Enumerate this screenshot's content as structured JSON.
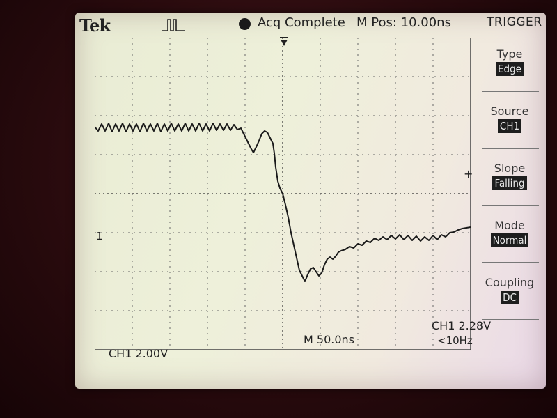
{
  "header": {
    "brand": "Tek",
    "status": "Acq Complete",
    "position": "M Pos: 10.00ns",
    "icons": [
      "trigger-pulse-icon",
      "acquisition-status-dot-icon",
      "trigger-position-arrow-icon"
    ]
  },
  "trigger_menu": {
    "title": "TRIGGER",
    "items": [
      {
        "label": "Type",
        "value": "Edge"
      },
      {
        "label": "Source",
        "value": "CH1"
      },
      {
        "label": "Slope",
        "value": "Falling"
      },
      {
        "label": "Mode",
        "value": "Normal"
      },
      {
        "label": "Coupling",
        "value": "DC"
      }
    ]
  },
  "readouts": {
    "channel_marker": "1",
    "channel_scale": "CH1  2.00V",
    "timebase": "M 50.0ns",
    "trigger_level": "CH1  2.28V",
    "trigger_freq": "<10Hz",
    "level_marker": "+"
  },
  "colors": {
    "screen": "#eef0da",
    "trace": "#1a1a1a",
    "highlight": "#1e1e1e"
  }
}
